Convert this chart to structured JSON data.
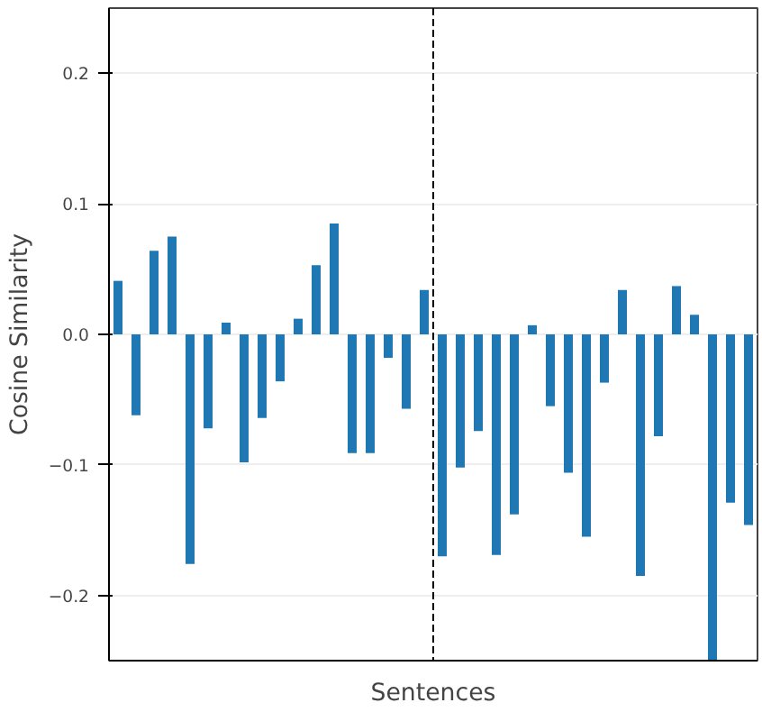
{
  "chart_data": {
    "type": "bar",
    "xlabel": "Sentences",
    "ylabel": "Cosine Similarity",
    "categories": [
      null,
      null,
      null,
      null,
      null,
      null,
      null,
      null,
      null,
      null,
      null,
      null,
      null,
      null,
      null,
      null,
      null,
      null,
      null,
      null,
      null,
      null,
      null,
      null,
      null,
      null,
      null,
      null,
      null,
      null,
      null,
      null,
      null,
      null,
      null,
      null
    ],
    "values": [
      0.041,
      -0.062,
      0.064,
      0.075,
      -0.176,
      -0.072,
      0.009,
      -0.098,
      -0.064,
      -0.036,
      0.012,
      0.053,
      0.085,
      -0.091,
      -0.091,
      -0.018,
      -0.057,
      0.034,
      -0.17,
      -0.102,
      -0.074,
      -0.169,
      -0.138,
      0.007,
      -0.055,
      -0.106,
      -0.155,
      -0.037,
      0.034,
      -0.185,
      -0.078,
      0.037,
      0.015,
      -0.25,
      -0.129,
      -0.146
    ],
    "color": "#1f77b4",
    "ylim": [
      -0.25,
      0.25
    ],
    "yticks": [
      {
        "value": -0.2,
        "label": "−0.2"
      },
      {
        "value": -0.1,
        "label": "−0.1"
      },
      {
        "value": 0,
        "label": "0.0"
      },
      {
        "value": 0.1,
        "label": "0.1"
      },
      {
        "value": 0.2,
        "label": "0.2"
      }
    ],
    "tick_labels": "y",
    "grid": "y"
  }
}
